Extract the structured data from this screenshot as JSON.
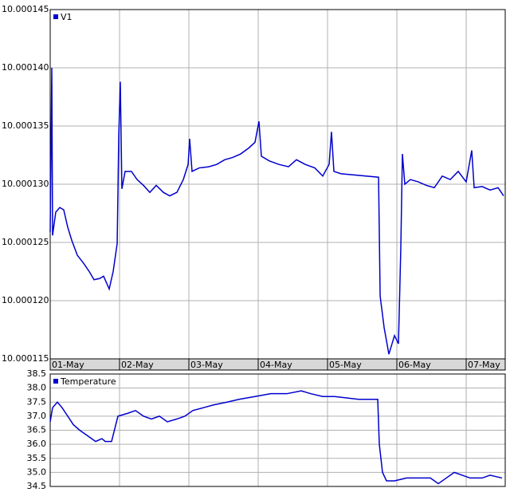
{
  "chart_data": [
    {
      "type": "line",
      "legend": "top-left",
      "grid": true,
      "xlim": [
        1,
        7.563
      ],
      "ylim": [
        10.000115,
        10.000145
      ],
      "xticks": [
        {
          "value": 1,
          "label": "01-May"
        },
        {
          "value": 2,
          "label": "02-May"
        },
        {
          "value": 3,
          "label": "03-May"
        },
        {
          "value": 4,
          "label": "04-May"
        },
        {
          "value": 5,
          "label": "05-May"
        },
        {
          "value": 6,
          "label": "06-May"
        },
        {
          "value": 7,
          "label": "07-May"
        }
      ],
      "yticks": [
        10.000115,
        {
          "value": 10.00012,
          "label": "10.000120"
        },
        10.000125,
        {
          "value": 10.00013,
          "label": "10.000130"
        },
        10.000135,
        {
          "value": 10.00014,
          "label": "10.000140"
        },
        10.000145
      ],
      "x": [
        1.0,
        1.023,
        1.034,
        1.08,
        1.138,
        1.195,
        1.253,
        1.31,
        1.391,
        1.483,
        1.563,
        1.632,
        1.713,
        1.77,
        1.851,
        1.908,
        1.966,
        1.989,
        2.011,
        2.034,
        2.08,
        2.172,
        2.253,
        2.345,
        2.437,
        2.529,
        2.632,
        2.724,
        2.828,
        2.92,
        2.989,
        3.011,
        3.046,
        3.149,
        3.287,
        3.402,
        3.517,
        3.632,
        3.747,
        3.862,
        3.954,
        4.011,
        4.046,
        4.161,
        4.299,
        4.437,
        4.552,
        4.678,
        4.816,
        4.931,
        5.023,
        5.057,
        5.092,
        5.195,
        5.736,
        5.759,
        5.816,
        5.885,
        5.966,
        6.023,
        6.057,
        6.08,
        6.115,
        6.195,
        6.31,
        6.425,
        6.54,
        6.655,
        6.77,
        6.885,
        7.0,
        7.08,
        7.115,
        7.23,
        7.345,
        7.46,
        7.54
      ],
      "series": [
        {
          "name": "V1",
          "color": "#0000cc",
          "values": [
            10.0001259,
            10.00014,
            10.0001256,
            10.0001276,
            10.000128,
            10.0001278,
            10.0001263,
            10.0001252,
            10.0001239,
            10.0001232,
            10.0001225,
            10.0001218,
            10.0001219,
            10.0001221,
            10.000121,
            10.0001225,
            10.0001249,
            10.0001342,
            10.0001388,
            10.0001296,
            10.0001311,
            10.0001311,
            10.0001304,
            10.0001299,
            10.0001293,
            10.0001299,
            10.0001293,
            10.000129,
            10.0001293,
            10.0001304,
            10.0001317,
            10.0001339,
            10.0001311,
            10.0001314,
            10.0001315,
            10.0001317,
            10.0001321,
            10.0001323,
            10.0001326,
            10.0001331,
            10.0001336,
            10.0001354,
            10.0001324,
            10.000132,
            10.0001317,
            10.0001315,
            10.0001321,
            10.0001317,
            10.0001314,
            10.0001307,
            10.0001317,
            10.0001345,
            10.0001311,
            10.0001309,
            10.0001306,
            10.0001204,
            10.0001177,
            10.0001154,
            10.000117,
            10.0001163,
            10.0001245,
            10.0001326,
            10.00013,
            10.0001304,
            10.0001302,
            10.0001299,
            10.0001297,
            10.0001307,
            10.0001304,
            10.0001311,
            10.0001302,
            10.0001329,
            10.0001297,
            10.0001298,
            10.0001295,
            10.0001297,
            10.000129
          ]
        }
      ]
    },
    {
      "type": "line",
      "legend": "top-left",
      "grid": true,
      "xlim": [
        1,
        7.563
      ],
      "ylim": [
        34.5,
        38.5
      ],
      "yticks": [
        34.5,
        {
          "value": 35,
          "label": "35.0"
        },
        35.5,
        {
          "value": 36,
          "label": "36.0"
        },
        36.5,
        {
          "value": 37,
          "label": "37.0"
        },
        37.5,
        {
          "value": 38,
          "label": "38.0"
        },
        38.5
      ],
      "x": [
        1.0,
        1.034,
        1.103,
        1.172,
        1.253,
        1.333,
        1.425,
        1.54,
        1.655,
        1.747,
        1.793,
        1.885,
        1.977,
        2.115,
        2.23,
        2.345,
        2.46,
        2.575,
        2.69,
        2.828,
        2.943,
        3.057,
        3.207,
        3.356,
        3.552,
        3.724,
        3.954,
        4.184,
        4.414,
        4.621,
        4.759,
        4.931,
        5.103,
        5.448,
        5.724,
        5.747,
        5.793,
        5.851,
        5.966,
        6.138,
        6.483,
        6.598,
        6.713,
        6.828,
        6.943,
        7.057,
        7.23,
        7.345,
        7.517
      ],
      "series": [
        {
          "name": "Temperature",
          "color": "#0000cc",
          "values": [
            36.8,
            37.3,
            37.5,
            37.3,
            37.0,
            36.7,
            36.5,
            36.3,
            36.1,
            36.2,
            36.1,
            36.1,
            37.0,
            37.1,
            37.2,
            37.0,
            36.9,
            37.0,
            36.8,
            36.9,
            37.0,
            37.2,
            37.3,
            37.4,
            37.5,
            37.6,
            37.7,
            37.8,
            37.8,
            37.9,
            37.8,
            37.7,
            37.7,
            37.6,
            37.6,
            36.0,
            35.0,
            34.7,
            34.7,
            34.8,
            34.8,
            34.6,
            34.8,
            35.0,
            34.9,
            34.8,
            34.8,
            34.9,
            34.8
          ]
        }
      ]
    }
  ]
}
